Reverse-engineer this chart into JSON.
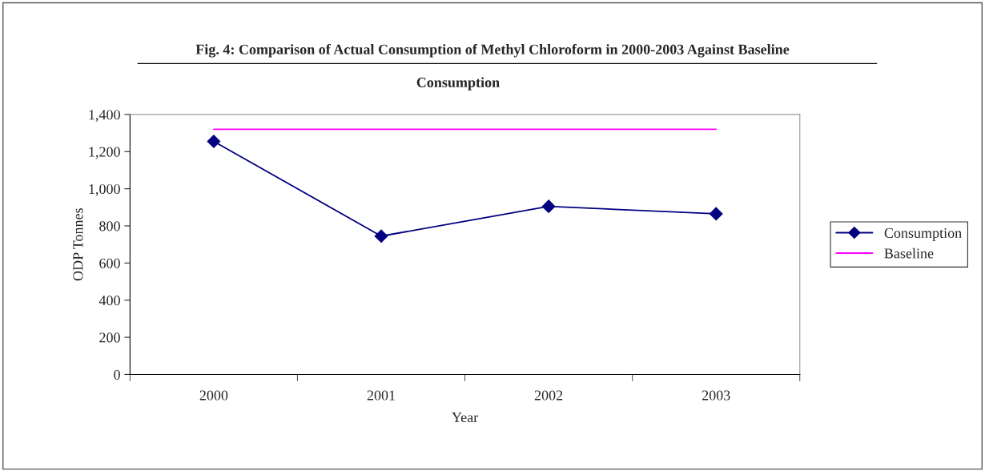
{
  "chart_data": {
    "type": "line",
    "title": "Fig. 4: Comparison of Actual Consumption of Methyl Chloroform in 2000-2003 Against Baseline",
    "subtitle": "Consumption",
    "xlabel": "Year",
    "ylabel": "ODP Tonnes",
    "categories": [
      "2000",
      "2001",
      "2002",
      "2003"
    ],
    "series": [
      {
        "name": "Consumption",
        "color": "#000080",
        "values": [
          1255,
          745,
          905,
          865
        ],
        "marker": "diamond"
      },
      {
        "name": "Baseline",
        "color": "#ff00ff",
        "values": [
          1320,
          1320,
          1320,
          1320
        ],
        "marker": "none"
      }
    ],
    "ylim": [
      0,
      1400
    ],
    "yticks": [
      0,
      200,
      400,
      600,
      800,
      {
        "value": 1000,
        "label": "1,000"
      },
      {
        "value": 1200,
        "label": "1,200"
      },
      {
        "value": 1400,
        "label": "1,400"
      }
    ],
    "grid": false,
    "legend": "right",
    "line_style": "solid"
  }
}
